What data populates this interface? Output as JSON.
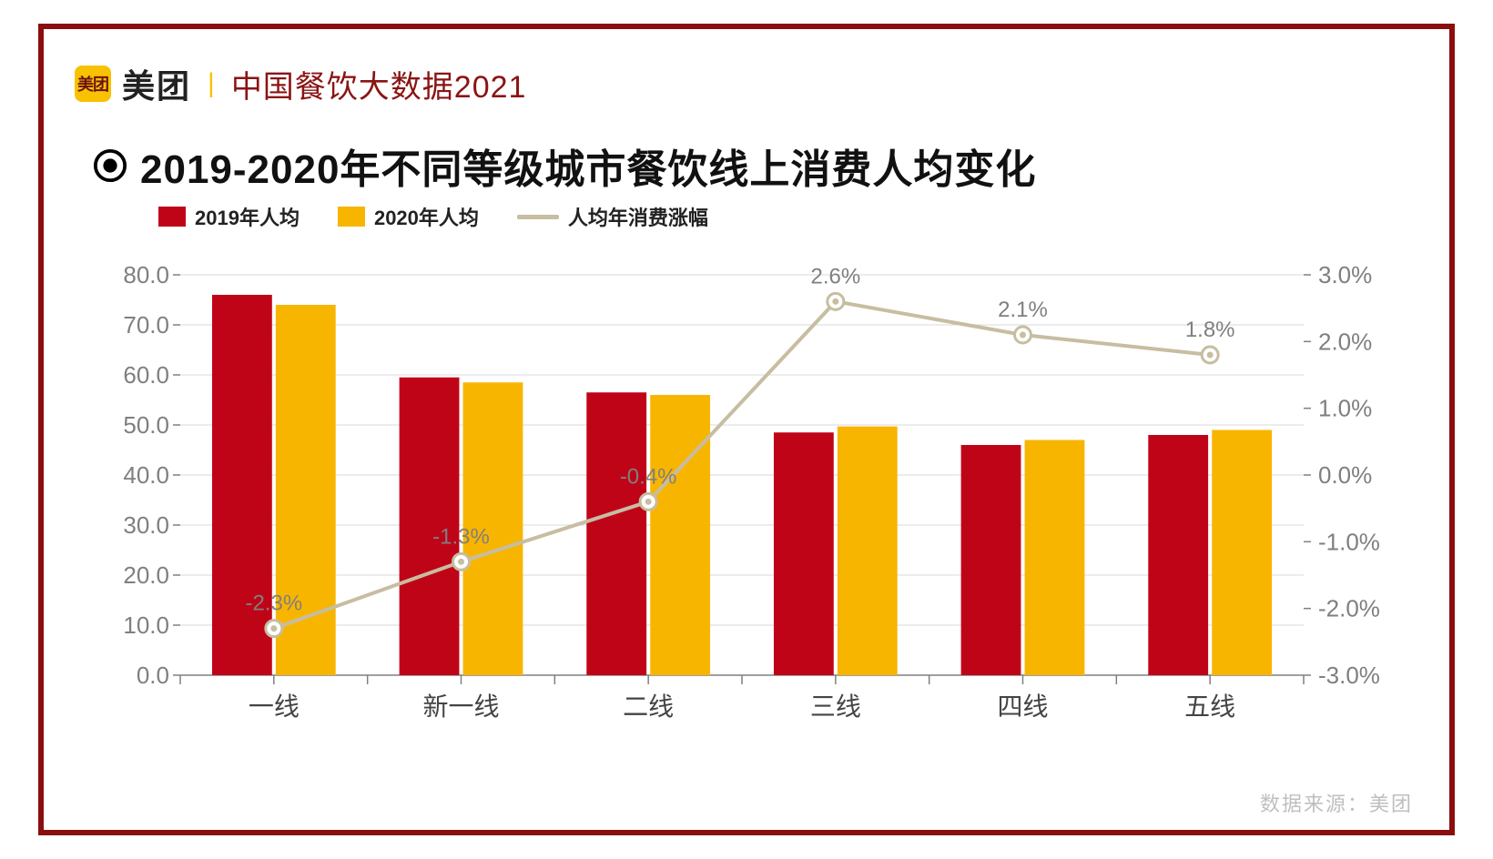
{
  "header": {
    "logo_badge_text": "美团",
    "brand_text": "美团",
    "report_name": "中国餐饮大数据2021"
  },
  "title": "2019-2020年不同等级城市餐饮线上消费人均变化",
  "legend": {
    "series1": "2019年人均",
    "series2": "2020年人均",
    "series3": "人均年消费涨幅"
  },
  "source_label": "数据来源：美团",
  "chart": {
    "type": "bar+line",
    "categories": [
      "一线",
      "新一线",
      "二线",
      "三线",
      "四线",
      "五线"
    ],
    "bar_series": [
      {
        "name": "2019年人均",
        "color": "#c00418",
        "values": [
          76.0,
          59.5,
          56.5,
          48.5,
          46.0,
          48.0
        ]
      },
      {
        "name": "2020年人均",
        "color": "#f8b500",
        "values": [
          74.0,
          58.5,
          56.0,
          49.7,
          47.0,
          49.0
        ]
      }
    ],
    "line_series": {
      "name": "人均年消费涨幅",
      "color": "#c7bda1",
      "marker_fill": "#ffffff",
      "marker_stroke": "#c7bda1",
      "values": [
        -2.3,
        -1.3,
        -0.4,
        2.6,
        2.1,
        1.8
      ],
      "labels": [
        "-2.3%",
        "-1.3%",
        "-0.4%",
        "2.6%",
        "2.1%",
        "1.8%"
      ]
    },
    "y_axis": {
      "min": 0,
      "max": 80,
      "step": 10,
      "ticks": [
        "0.0",
        "10.0",
        "20.0",
        "30.0",
        "40.0",
        "50.0",
        "60.0",
        "70.0",
        "80.0"
      ]
    },
    "y2_axis": {
      "min": -3,
      "max": 3,
      "step": 1,
      "ticks": [
        "-3.0%",
        "-2.0%",
        "-1.0%",
        "0.0%",
        "1.0%",
        "2.0%",
        "3.0%"
      ]
    },
    "style": {
      "background": "#ffffff",
      "grid_color": "#d9d9d9",
      "axis_color": "#808080",
      "tick_color": "#808080",
      "bar_width": 0.32,
      "bar_gap": 0.02,
      "line_width": 4,
      "marker_outer_r": 9,
      "marker_inner_r": 3.5,
      "label_fontsize": 24,
      "tick_fontsize": 26,
      "xtick_fontsize": 28
    }
  },
  "frame_border_color": "#8b0e0e"
}
